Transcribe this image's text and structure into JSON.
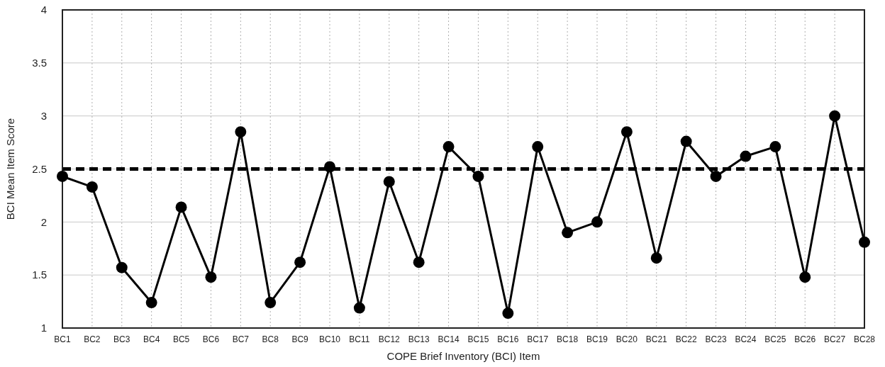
{
  "chart_data": {
    "type": "line",
    "xlabel": "COPE Brief Inventory (BCI) Item",
    "ylabel": "BCI Mean Item Score",
    "categories": [
      "BC1",
      "BC2",
      "BC3",
      "BC4",
      "BC5",
      "BC6",
      "BC7",
      "BC8",
      "BC9",
      "BC10",
      "BC11",
      "BC12",
      "BC13",
      "BC14",
      "BC15",
      "BC16",
      "BC17",
      "BC18",
      "BC19",
      "BC20",
      "BC21",
      "BC22",
      "BC23",
      "BC24",
      "BC25",
      "BC26",
      "BC27",
      "BC28"
    ],
    "series": [
      {
        "color": "#000000",
        "values": [
          2.43,
          2.33,
          1.57,
          1.24,
          2.14,
          1.48,
          2.85,
          1.24,
          1.62,
          2.52,
          1.19,
          2.38,
          1.62,
          2.71,
          2.43,
          1.14,
          2.71,
          1.9,
          2.0,
          2.85,
          1.66,
          2.76,
          2.43,
          2.62,
          2.71,
          1.48,
          3.0,
          1.81
        ]
      }
    ],
    "ylim": [
      1,
      4
    ],
    "yticks": [
      1,
      1.5,
      2,
      2.5,
      3,
      3.5,
      4
    ],
    "grid": true,
    "marker": "circle",
    "line_style": "solid",
    "ref_lines": [
      {
        "axis": "y",
        "value": 2.5,
        "color": "#000000",
        "line_style": "dashed"
      }
    ]
  }
}
